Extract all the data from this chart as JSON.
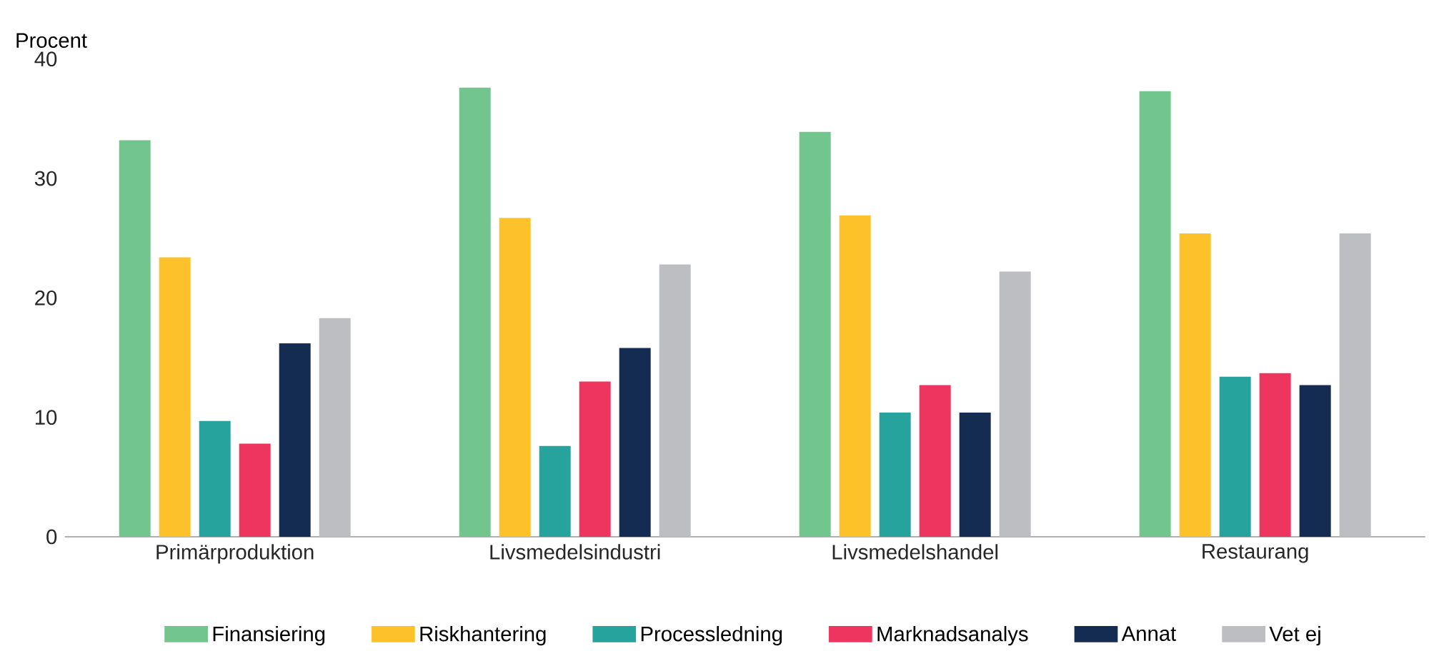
{
  "chart_data": {
    "type": "bar",
    "ylabel": "Procent",
    "categories": [
      "Primärproduktion",
      "Livsmedelsindustri",
      "Livsmedelshandel",
      "Restaurang"
    ],
    "ylim": [
      0,
      40
    ],
    "yticks": [
      0,
      10,
      20,
      30,
      40
    ],
    "legend": "bottom",
    "series": [
      {
        "name": "Finansiering",
        "color": "#72c58c",
        "values": [
          33.2,
          37.6,
          33.9,
          37.3
        ]
      },
      {
        "name": "Riskhantering",
        "color": "#fdc12a",
        "values": [
          23.4,
          26.7,
          26.9,
          25.4
        ]
      },
      {
        "name": "Processledning",
        "color": "#26a39c",
        "values": [
          9.7,
          7.6,
          10.4,
          13.4
        ]
      },
      {
        "name": "Marknadsanalys",
        "color": "#ee3560",
        "values": [
          7.8,
          13.0,
          12.7,
          13.7
        ]
      },
      {
        "name": "Annat",
        "color": "#152c52",
        "values": [
          16.2,
          15.8,
          10.4,
          12.7
        ]
      },
      {
        "name": "Vet ej",
        "color": "#bdbec2",
        "values": [
          18.3,
          22.8,
          22.2,
          25.4
        ]
      }
    ]
  }
}
